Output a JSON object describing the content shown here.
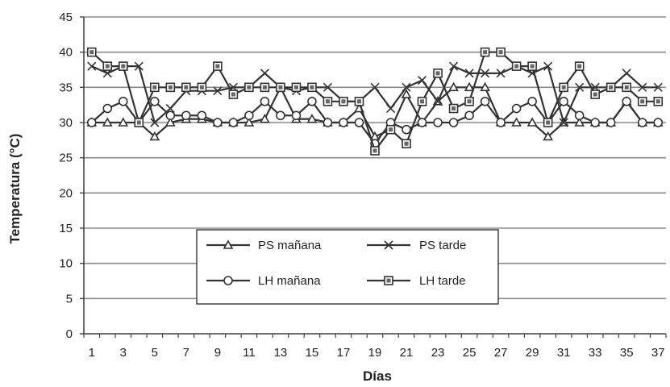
{
  "chart_data": {
    "type": "line",
    "title": "",
    "xlabel": "Días",
    "ylabel": "Temperatura (°C)",
    "xlim": [
      1,
      37
    ],
    "ylim": [
      0,
      45
    ],
    "x_ticks": [
      1,
      3,
      5,
      7,
      9,
      11,
      13,
      15,
      17,
      19,
      21,
      23,
      25,
      27,
      29,
      31,
      33,
      35,
      37
    ],
    "y_ticks": [
      0,
      5,
      10,
      15,
      20,
      25,
      30,
      35,
      40,
      45
    ],
    "grid": "horizontal",
    "legend_position": "bottom-center",
    "x": [
      1,
      2,
      3,
      4,
      5,
      6,
      7,
      8,
      9,
      10,
      11,
      12,
      13,
      14,
      15,
      16,
      17,
      18,
      19,
      20,
      21,
      22,
      23,
      24,
      25,
      26,
      27,
      28,
      29,
      30,
      31,
      32,
      33,
      34,
      35,
      36,
      37
    ],
    "series": [
      {
        "name": "PS mañana",
        "marker": "triangle",
        "values": [
          30,
          30,
          30,
          30,
          28,
          30,
          30.5,
          30.5,
          30,
          30,
          30,
          30.5,
          35,
          30.5,
          30.5,
          30,
          30,
          32,
          28,
          29,
          34,
          30,
          33,
          35,
          35,
          35,
          30,
          30,
          30,
          28,
          30,
          30,
          30,
          30,
          33,
          30,
          30
        ]
      },
      {
        "name": "PS tarde",
        "marker": "x",
        "values": [
          38,
          37,
          38,
          38,
          30,
          32,
          34.5,
          34.5,
          34.5,
          35,
          35,
          37,
          35,
          34.5,
          35,
          35,
          33,
          33,
          35,
          32,
          35,
          36,
          33,
          38,
          37,
          37,
          37,
          38,
          37,
          38,
          30,
          35,
          35,
          35,
          37,
          35,
          35
        ]
      },
      {
        "name": "LH mañana",
        "marker": "circle",
        "values": [
          30,
          32,
          33,
          30,
          33,
          31,
          31,
          31,
          30,
          30,
          31,
          33,
          31,
          31,
          33,
          30,
          30,
          30,
          27,
          30,
          29,
          30,
          30,
          30,
          31,
          33,
          30,
          32,
          33,
          30,
          33,
          31,
          30,
          30,
          33,
          30,
          30
        ]
      },
      {
        "name": "LH tarde",
        "marker": "square",
        "values": [
          40,
          38,
          38,
          30,
          35,
          35,
          35,
          35,
          38,
          34,
          35,
          35,
          35,
          35,
          35,
          33,
          33,
          33,
          26,
          29,
          27,
          33,
          37,
          32,
          33,
          40,
          40,
          38,
          38,
          30,
          35,
          38,
          34,
          35,
          35,
          33,
          33
        ]
      }
    ]
  }
}
